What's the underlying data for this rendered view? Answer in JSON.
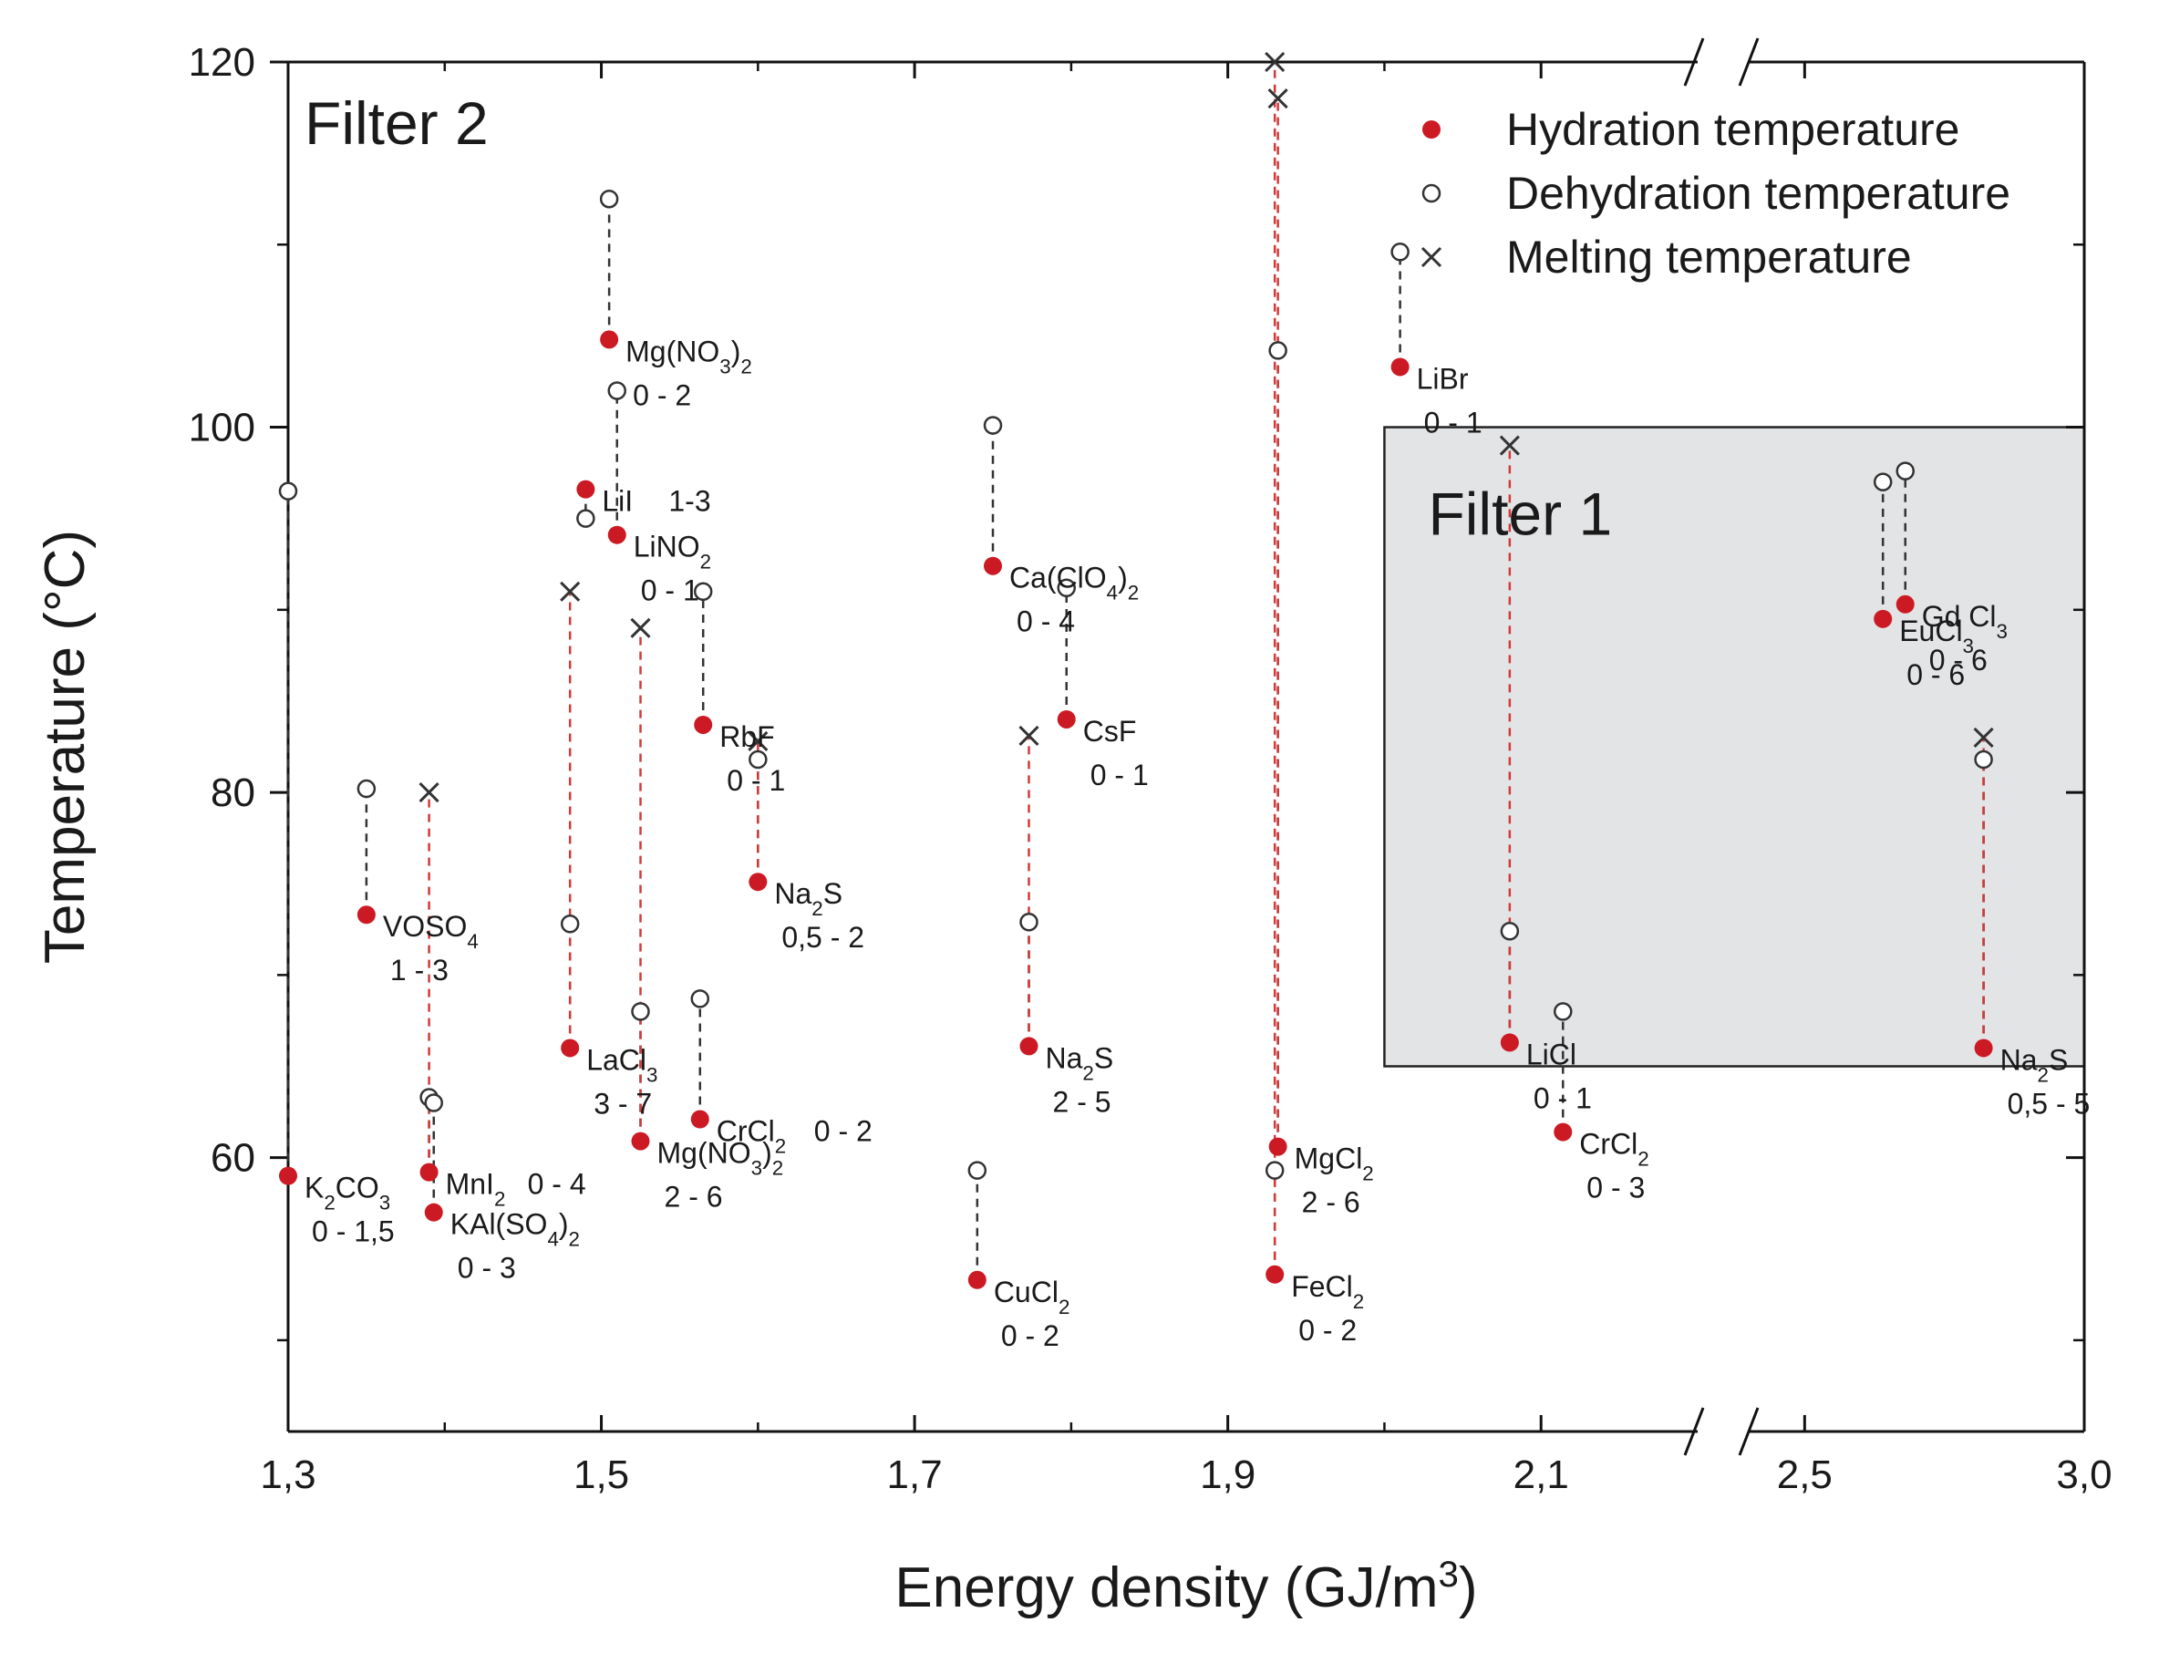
{
  "chart_data": {
    "type": "scatter",
    "xlabel": "Energy density (GJ/m",
    "xlabel_sup": "3",
    "xlabel_end": ")",
    "ylabel": "Temperature (°C)",
    "x_segments": [
      {
        "range": [
          1.3,
          2.2
        ],
        "ticks": [
          1.3,
          1.5,
          1.7,
          1.9,
          2.1
        ],
        "tick_labels": [
          "1,3",
          "1,5",
          "1,7",
          "1,9",
          "2,1"
        ]
      },
      {
        "range": [
          2.4,
          3.0
        ],
        "ticks": [
          2.5,
          3.0
        ],
        "tick_labels": [
          "2,5",
          "3,0"
        ]
      }
    ],
    "ylim": [
      45,
      120
    ],
    "y_ticks": [
      60,
      80,
      100,
      120
    ],
    "y_tick_labels": [
      "60",
      "80",
      "100",
      "120"
    ],
    "y_minor_ticks": [
      50,
      70,
      90,
      110
    ],
    "legend": {
      "position": "top-right",
      "hydration": "Hydration temperature",
      "dehydration": "Dehydration temperature",
      "melting": "Melting temperature"
    },
    "colors": {
      "hydration": "#cc1a24",
      "dehydration_line": "#333333",
      "melting_line": "#d23a3a",
      "filter_box": "#e3e4e6",
      "axis": "#111111"
    },
    "filters": [
      {
        "label": "Filter 1",
        "x_range": [
          2.0,
          3.0
        ],
        "y_range": [
          65,
          100
        ]
      },
      {
        "label": "Filter 2"
      }
    ],
    "salts": [
      {
        "name": "K₂CO₃",
        "range": "0 - 1,5",
        "x": 1.3,
        "hydration": 59,
        "dehydration": 96.5
      },
      {
        "name": "VOSO₄",
        "range": "1 - 3",
        "x": 1.35,
        "hydration": 73.3,
        "dehydration": 80.2
      },
      {
        "name": "MnI₂",
        "name_suffix": "0 - 4",
        "range": "",
        "x": 1.39,
        "hydration": 59.2,
        "dehydration": 63.3,
        "melting": 80
      },
      {
        "name": "KAl(SO₄)₂",
        "range": "0 - 3",
        "x": 1.393,
        "hydration": 57,
        "dehydration": 63
      },
      {
        "name": "LaCl₃",
        "range": "3 - 7",
        "x": 1.48,
        "hydration": 66,
        "dehydration": 72.8,
        "melting": 91
      },
      {
        "name": "LiI",
        "name_suffix": "1-3",
        "range": "",
        "x": 1.49,
        "hydration": 96.6,
        "dehydration": 95
      },
      {
        "name": "Mg(NO₃)₂",
        "range": "0 - 2",
        "x": 1.505,
        "hydration": 104.8,
        "dehydration": 112.5
      },
      {
        "name": "LiNO₂",
        "range": "0 - 1",
        "x": 1.51,
        "hydration": 94.1,
        "dehydration": 102
      },
      {
        "name": "Mg(NO₃)₂",
        "range": "2 - 6",
        "x": 1.525,
        "hydration": 60.9,
        "dehydration": 68,
        "melting": 89
      },
      {
        "name": "CrCl₂",
        "name_suffix": "0 - 2",
        "range": "",
        "x": 1.563,
        "hydration": 62.1,
        "dehydration": 68.7
      },
      {
        "name": "RbF",
        "range": "0 - 1",
        "x": 1.565,
        "hydration": 83.7,
        "dehydration": 91
      },
      {
        "name": "Na₂S",
        "range": "0,5 - 2",
        "x": 1.6,
        "hydration": 75.1,
        "dehydration": 81.8,
        "melting": 82.8
      },
      {
        "name": "CuCl₂",
        "range": "0 - 2",
        "x": 1.74,
        "hydration": 53.3,
        "dehydration": 59.3
      },
      {
        "name": "Ca(ClO₄)₂",
        "range": "0 - 4",
        "x": 1.75,
        "hydration": 92.4,
        "dehydration": 100.1
      },
      {
        "name": "Na₂S",
        "range": "2 - 5",
        "x": 1.773,
        "hydration": 66.1,
        "dehydration": 72.9,
        "melting": 83.1
      },
      {
        "name": "CsF",
        "range": "0 - 1",
        "x": 1.797,
        "hydration": 84,
        "dehydration": 91.2
      },
      {
        "name": "MgCl₂",
        "range": "2 - 6",
        "x": 1.932,
        "hydration": 60.6,
        "dehydration": 104.2,
        "melting": 118
      },
      {
        "name": "FeCl₂",
        "range": "0 - 2",
        "x": 1.93,
        "hydration": 53.6,
        "dehydration": 59.3,
        "melting": 120
      },
      {
        "name": "LiBr",
        "range": "0 - 1",
        "x": 2.01,
        "hydration": 103.3,
        "dehydration": 109.6
      },
      {
        "name": "LiCl",
        "range": "0 - 1",
        "x": 2.08,
        "hydration": 66.3,
        "dehydration": 72.4,
        "melting": 99
      },
      {
        "name": "CrCl₂",
        "range": "0 - 3",
        "x": 2.114,
        "hydration": 61.4,
        "dehydration": 68
      },
      {
        "name": "EuCl₃",
        "range": "0 - 6",
        "x": 2.64,
        "hydration": 89.5,
        "dehydration": 97
      },
      {
        "name": "Gd Cl₃",
        "range": "0 - 6",
        "x": 2.68,
        "hydration": 90.3,
        "dehydration": 97.6
      },
      {
        "name": "Na₂S",
        "range": "0,5 - 5",
        "x": 2.82,
        "hydration": 66,
        "dehydration": 81.8,
        "melting": 83
      }
    ]
  }
}
